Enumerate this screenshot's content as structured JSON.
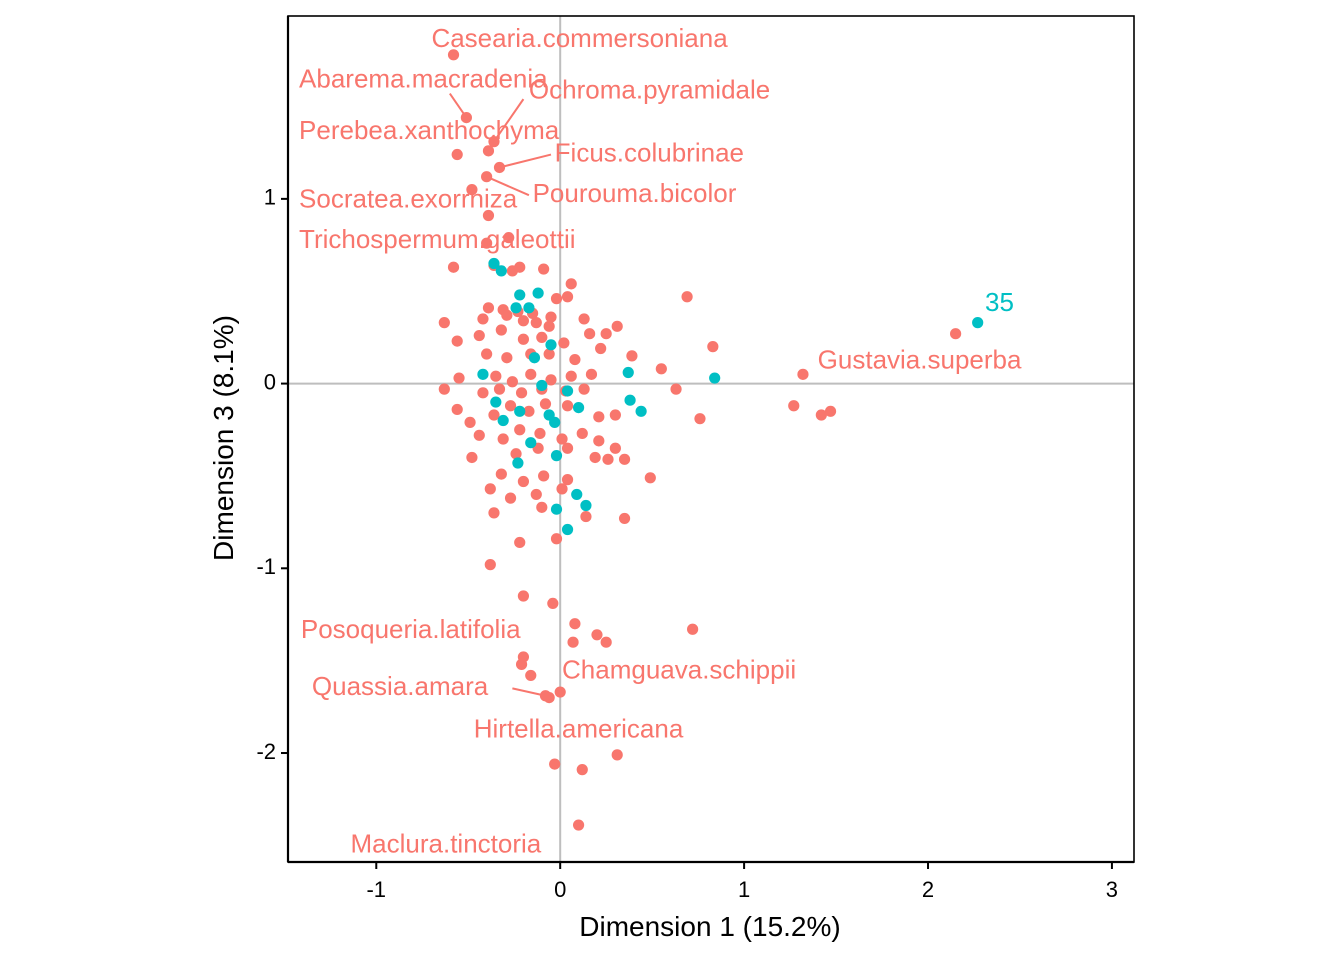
{
  "chart_data": {
    "type": "scatter",
    "xlabel": "Dimension 1 (15.2%)",
    "ylabel": "Dimension 3 (8.1%)",
    "xlim": [
      -1.48,
      3.12
    ],
    "ylim": [
      -2.59,
      1.99
    ],
    "xticks": [
      -1,
      0,
      1,
      2,
      3
    ],
    "xtick_labels": [
      "-1",
      "0",
      "1",
      "2",
      "3"
    ],
    "yticks": [
      -2,
      -1,
      0,
      1
    ],
    "ytick_labels": [
      "-2",
      "-1",
      "0",
      "1"
    ],
    "reference_lines": {
      "x": 0,
      "y": 0
    },
    "grid": false,
    "legend": "none",
    "colors": {
      "species": "#F8766D",
      "site": "#00BFC4",
      "refline": "#bebebe",
      "axis": "#000000"
    },
    "series": [
      {
        "color": "#F8766D",
        "points": [
          [
            -0.58,
            1.78
          ],
          [
            -0.51,
            1.44
          ],
          [
            -0.36,
            1.31
          ],
          [
            -0.56,
            1.24
          ],
          [
            -0.39,
            1.26
          ],
          [
            -0.33,
            1.17
          ],
          [
            -0.4,
            1.12
          ],
          [
            -0.48,
            1.05
          ],
          [
            -0.39,
            0.91
          ],
          [
            -0.28,
            0.79
          ],
          [
            -0.4,
            0.76
          ],
          [
            -0.58,
            0.63
          ],
          [
            -0.36,
            0.64
          ],
          [
            -0.26,
            0.61
          ],
          [
            -0.22,
            0.63
          ],
          [
            -0.09,
            0.62
          ],
          [
            0.06,
            0.54
          ],
          [
            -0.02,
            0.46
          ],
          [
            0.04,
            0.47
          ],
          [
            0.69,
            0.47
          ],
          [
            -0.39,
            0.41
          ],
          [
            -0.31,
            0.4
          ],
          [
            -0.23,
            0.39
          ],
          [
            -0.15,
            0.38
          ],
          [
            -0.05,
            0.36
          ],
          [
            -0.63,
            0.33
          ],
          [
            -0.42,
            0.35
          ],
          [
            -0.29,
            0.37
          ],
          [
            -0.2,
            0.34
          ],
          [
            -0.13,
            0.33
          ],
          [
            -0.06,
            0.31
          ],
          [
            0.13,
            0.35
          ],
          [
            0.31,
            0.31
          ],
          [
            -0.56,
            0.23
          ],
          [
            -0.44,
            0.26
          ],
          [
            -0.32,
            0.29
          ],
          [
            -0.2,
            0.24
          ],
          [
            -0.1,
            0.25
          ],
          [
            0.02,
            0.22
          ],
          [
            0.16,
            0.27
          ],
          [
            0.25,
            0.27
          ],
          [
            0.83,
            0.2
          ],
          [
            -0.4,
            0.16
          ],
          [
            -0.29,
            0.14
          ],
          [
            -0.16,
            0.16
          ],
          [
            -0.06,
            0.16
          ],
          [
            0.08,
            0.13
          ],
          [
            0.22,
            0.19
          ],
          [
            0.39,
            0.15
          ],
          [
            -0.55,
            0.03
          ],
          [
            -0.35,
            0.04
          ],
          [
            -0.26,
            0.01
          ],
          [
            -0.16,
            0.05
          ],
          [
            -0.05,
            0.02
          ],
          [
            0.06,
            0.04
          ],
          [
            0.17,
            0.05
          ],
          [
            0.55,
            0.08
          ],
          [
            1.32,
            0.05
          ],
          [
            -0.63,
            -0.03
          ],
          [
            -0.42,
            -0.05
          ],
          [
            -0.33,
            -0.03
          ],
          [
            -0.21,
            -0.05
          ],
          [
            -0.1,
            -0.03
          ],
          [
            0.03,
            -0.04
          ],
          [
            0.13,
            -0.03
          ],
          [
            0.63,
            -0.03
          ],
          [
            -0.56,
            -0.14
          ],
          [
            -0.49,
            -0.21
          ],
          [
            -0.36,
            -0.17
          ],
          [
            -0.27,
            -0.12
          ],
          [
            -0.17,
            -0.15
          ],
          [
            -0.08,
            -0.11
          ],
          [
            0.04,
            -0.12
          ],
          [
            0.21,
            -0.18
          ],
          [
            0.3,
            -0.17
          ],
          [
            0.76,
            -0.19
          ],
          [
            1.27,
            -0.12
          ],
          [
            1.42,
            -0.17
          ],
          [
            1.47,
            -0.15
          ],
          [
            -0.44,
            -0.28
          ],
          [
            -0.31,
            -0.3
          ],
          [
            -0.22,
            -0.25
          ],
          [
            -0.11,
            -0.27
          ],
          [
            0.01,
            -0.3
          ],
          [
            0.12,
            -0.27
          ],
          [
            0.21,
            -0.31
          ],
          [
            0.3,
            -0.35
          ],
          [
            -0.48,
            -0.4
          ],
          [
            -0.24,
            -0.38
          ],
          [
            -0.12,
            -0.35
          ],
          [
            0.04,
            -0.35
          ],
          [
            0.19,
            -0.4
          ],
          [
            0.26,
            -0.41
          ],
          [
            0.35,
            -0.41
          ],
          [
            -0.32,
            -0.49
          ],
          [
            -0.2,
            -0.53
          ],
          [
            -0.09,
            -0.5
          ],
          [
            0.04,
            -0.52
          ],
          [
            0.49,
            -0.51
          ],
          [
            -0.38,
            -0.57
          ],
          [
            -0.27,
            -0.62
          ],
          [
            -0.13,
            -0.6
          ],
          [
            0.01,
            -0.57
          ],
          [
            -0.36,
            -0.7
          ],
          [
            -0.1,
            -0.67
          ],
          [
            0.14,
            -0.72
          ],
          [
            0.35,
            -0.73
          ],
          [
            -0.22,
            -0.86
          ],
          [
            -0.02,
            -0.84
          ],
          [
            -0.38,
            -0.98
          ],
          [
            -0.2,
            -1.15
          ],
          [
            -0.04,
            -1.19
          ],
          [
            0.08,
            -1.3
          ],
          [
            0.2,
            -1.36
          ],
          [
            0.25,
            -1.4
          ],
          [
            0.72,
            -1.33
          ],
          [
            0.07,
            -1.4
          ],
          [
            -0.2,
            -1.48
          ],
          [
            -0.21,
            -1.52
          ],
          [
            -0.16,
            -1.58
          ],
          [
            0.0,
            -1.67
          ],
          [
            -0.08,
            -1.69
          ],
          [
            -0.06,
            -1.7
          ],
          [
            0.31,
            -2.01
          ],
          [
            -0.03,
            -2.06
          ],
          [
            0.12,
            -2.09
          ],
          [
            0.1,
            -2.39
          ],
          [
            2.15,
            0.27
          ]
        ]
      },
      {
        "color": "#00BFC4",
        "points": [
          [
            -0.36,
            0.65
          ],
          [
            -0.32,
            0.61
          ],
          [
            -0.22,
            0.48
          ],
          [
            -0.12,
            0.49
          ],
          [
            -0.17,
            0.41
          ],
          [
            -0.24,
            0.41
          ],
          [
            -0.05,
            0.21
          ],
          [
            -0.14,
            0.14
          ],
          [
            0.37,
            0.06
          ],
          [
            0.84,
            0.03
          ],
          [
            -0.42,
            0.05
          ],
          [
            -0.1,
            -0.01
          ],
          [
            0.04,
            -0.04
          ],
          [
            -0.35,
            -0.1
          ],
          [
            -0.22,
            -0.15
          ],
          [
            0.38,
            -0.09
          ],
          [
            0.44,
            -0.15
          ],
          [
            -0.31,
            -0.2
          ],
          [
            -0.06,
            -0.17
          ],
          [
            0.1,
            -0.13
          ],
          [
            -0.03,
            -0.21
          ],
          [
            -0.16,
            -0.32
          ],
          [
            -0.23,
            -0.43
          ],
          [
            -0.02,
            -0.39
          ],
          [
            0.09,
            -0.6
          ],
          [
            0.14,
            -0.66
          ],
          [
            -0.02,
            -0.68
          ],
          [
            0.04,
            -0.79
          ],
          [
            2.27,
            0.33
          ]
        ]
      }
    ],
    "labels": [
      {
        "text": "Casearia.commersoniana",
        "x": -0.58,
        "y": 1.78,
        "lx": -0.7,
        "ly": 1.86,
        "color": "#F8766D"
      },
      {
        "text": "Abarema.macradenia",
        "x": -0.51,
        "y": 1.44,
        "lx": -1.42,
        "ly": 1.64,
        "color": "#F8766D",
        "leader": [
          -0.6,
          1.57
        ]
      },
      {
        "text": "Ochroma.pyramidale",
        "x": -0.36,
        "y": 1.31,
        "lx": -0.17,
        "ly": 1.58,
        "color": "#F8766D",
        "leader": [
          -0.2,
          1.54
        ]
      },
      {
        "text": "Perebea.xanthochyma",
        "x": -0.39,
        "y": 1.26,
        "lx": -1.42,
        "ly": 1.36,
        "color": "#F8766D"
      },
      {
        "text": "Ficus.colubrinae",
        "x": -0.33,
        "y": 1.17,
        "lx": -0.03,
        "ly": 1.24,
        "color": "#F8766D",
        "leader": [
          -0.05,
          1.24
        ]
      },
      {
        "text": "Pourouma.bicolor",
        "x": -0.4,
        "y": 1.12,
        "lx": -0.15,
        "ly": 1.02,
        "color": "#F8766D",
        "leader": [
          -0.17,
          1.02
        ]
      },
      {
        "text": "Socratea.exorrhiza",
        "x": -0.48,
        "y": 1.05,
        "lx": -1.42,
        "ly": 0.99,
        "color": "#F8766D"
      },
      {
        "text": "Trichospermum.galeottii",
        "x": -0.4,
        "y": 0.76,
        "lx": -1.42,
        "ly": 0.77,
        "color": "#F8766D"
      },
      {
        "text": "35",
        "x": 2.27,
        "y": 0.33,
        "lx": 2.31,
        "ly": 0.43,
        "color": "#00BFC4"
      },
      {
        "text": "Gustavia.superba",
        "x": 1.32,
        "y": 0.05,
        "lx": 1.4,
        "ly": 0.12,
        "color": "#F8766D"
      },
      {
        "text": "Posoqueria.latifolia",
        "x": -0.2,
        "y": -1.48,
        "lx": -1.41,
        "ly": -1.34,
        "color": "#F8766D"
      },
      {
        "text": "Chamguava.schippii",
        "x": 0.0,
        "y": -1.67,
        "lx": 0.01,
        "ly": -1.56,
        "color": "#F8766D"
      },
      {
        "text": "Quassia.amara",
        "x": -0.08,
        "y": -1.69,
        "lx": -1.35,
        "ly": -1.65,
        "color": "#F8766D",
        "leader": [
          -0.26,
          -1.65
        ]
      },
      {
        "text": "Hirtella.americana",
        "x": 0.0,
        "y": -1.67,
        "lx": -0.47,
        "ly": -1.88,
        "color": "#F8766D"
      },
      {
        "text": "Maclura.tinctoria",
        "x": 0.1,
        "y": -2.39,
        "lx": -1.14,
        "ly": -2.5,
        "color": "#F8766D"
      }
    ]
  }
}
